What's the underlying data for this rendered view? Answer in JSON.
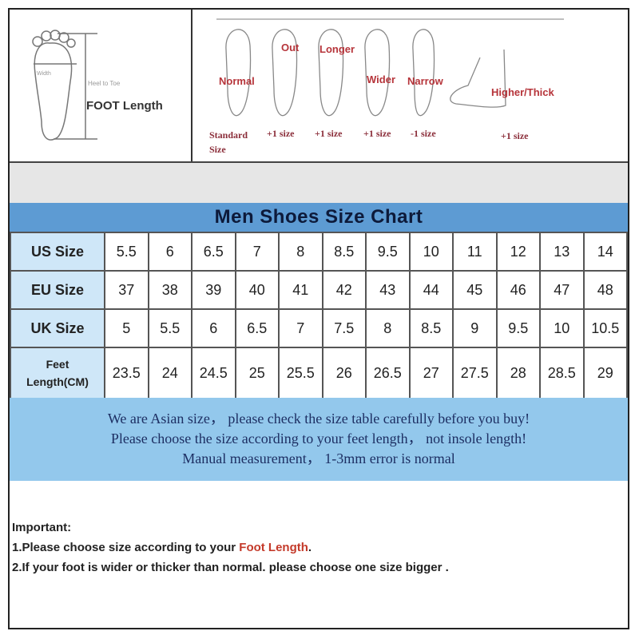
{
  "diagram": {
    "width_label": "Width",
    "heel_to_toe": "Heel to Toe",
    "foot_length": "FOOT Length",
    "types": [
      {
        "label": "Normal",
        "size": "Standard Size"
      },
      {
        "label": "Out",
        "size": "+1 size"
      },
      {
        "label": "Longer",
        "size": "+1 size"
      },
      {
        "label": "Wider",
        "size": "+1 size"
      },
      {
        "label": "Narrow",
        "size": "-1 size"
      },
      {
        "label": "Higher/Thick",
        "size": "+1 size"
      }
    ]
  },
  "chart": {
    "title": "Men Shoes Size Chart",
    "rows": [
      {
        "label": "US Size",
        "values": [
          "5.5",
          "6",
          "6.5",
          "7",
          "8",
          "8.5",
          "9.5",
          "10",
          "11",
          "12",
          "13",
          "14"
        ]
      },
      {
        "label": "EU Size",
        "values": [
          "37",
          "38",
          "39",
          "40",
          "41",
          "42",
          "43",
          "44",
          "45",
          "46",
          "47",
          "48"
        ]
      },
      {
        "label": "UK Size",
        "values": [
          "5",
          "5.5",
          "6",
          "6.5",
          "7",
          "7.5",
          "8",
          "8.5",
          "9",
          "9.5",
          "10",
          "10.5"
        ]
      },
      {
        "label_line1": "Feet",
        "label_line2": "Length(CM)",
        "values": [
          "23.5",
          "24",
          "24.5",
          "25",
          "25.5",
          "26",
          "26.5",
          "27",
          "27.5",
          "28",
          "28.5",
          "29"
        ]
      }
    ]
  },
  "notes": [
    "We are Asian size， please check the size table carefully before you buy!",
    "Please choose the size according to your feet length， not insole length!",
    "Manual measurement， 1-3mm error is normal"
  ],
  "important": {
    "heading": "Important:",
    "line1_prefix": "1.Please choose size according to your ",
    "line1_highlight": "Foot Length",
    "line1_suffix": ".",
    "line2": "2.If your foot is wider or thicker than normal. please choose one size bigger ."
  },
  "colors": {
    "title_band": "#5d9bd3",
    "label_cells": "#cfe7f8",
    "notes_band": "#93c8ec",
    "highlight": "#c43a2a"
  }
}
